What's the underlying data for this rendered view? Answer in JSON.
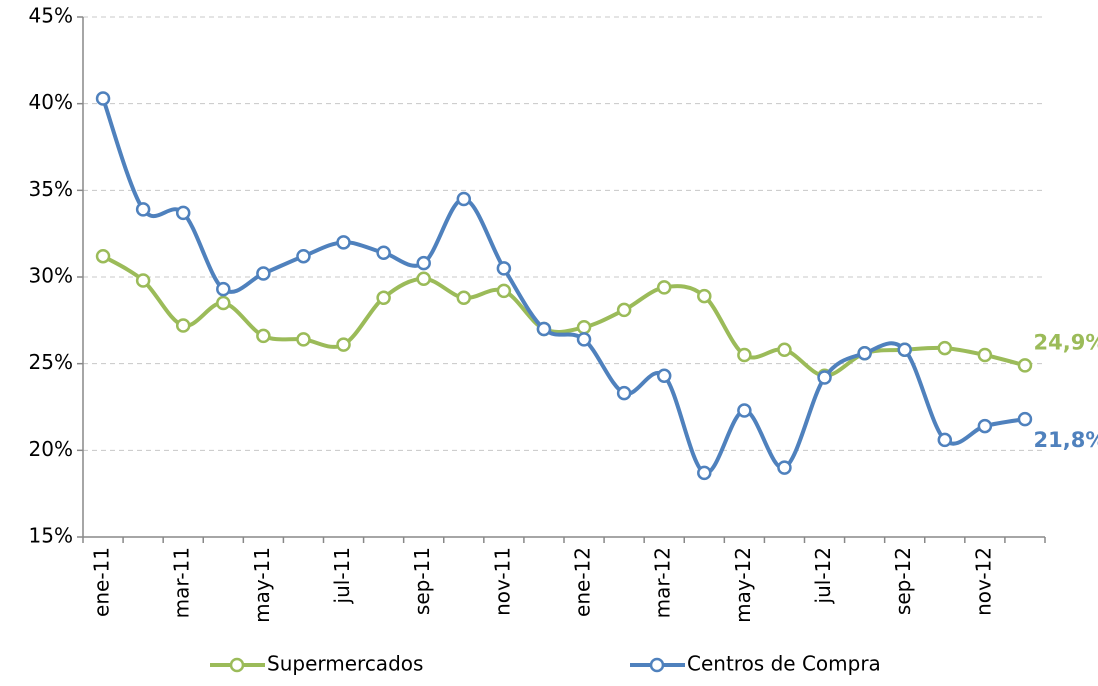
{
  "chart_data": {
    "type": "line",
    "categories": [
      "ene-11",
      null,
      "mar-11",
      null,
      "may-11",
      null,
      "jul-11",
      null,
      "sep-11",
      null,
      "nov-11",
      null,
      "ene-12",
      null,
      "mar-12",
      null,
      "may-12",
      null,
      "jul-12",
      null,
      "sep-12",
      null,
      "nov-12",
      null
    ],
    "series": [
      {
        "name": "Supermercados",
        "color": "#9bbb59",
        "values": [
          31.2,
          29.8,
          27.2,
          28.5,
          26.6,
          26.4,
          26.1,
          28.8,
          29.9,
          28.8,
          29.2,
          27.0,
          27.1,
          28.1,
          29.4,
          28.9,
          25.5,
          25.8,
          24.3,
          25.6,
          25.8,
          25.9,
          25.5,
          24.9
        ],
        "value_labels": [
          null,
          null,
          null,
          null,
          null,
          null,
          null,
          null,
          null,
          null,
          null,
          null,
          null,
          null,
          null,
          null,
          null,
          null,
          null,
          null,
          null,
          null,
          null,
          "24,9%"
        ]
      },
      {
        "name": "Centros de Compra",
        "color": "#4f81bd",
        "values": [
          40.3,
          33.9,
          33.7,
          29.3,
          30.2,
          31.2,
          32.0,
          31.4,
          30.8,
          34.5,
          30.5,
          27.0,
          26.4,
          23.3,
          24.3,
          18.7,
          22.3,
          19.0,
          24.2,
          25.6,
          25.8,
          20.6,
          21.4,
          21.8
        ],
        "value_labels": [
          null,
          null,
          null,
          null,
          null,
          null,
          null,
          null,
          null,
          null,
          null,
          null,
          null,
          null,
          null,
          null,
          null,
          null,
          null,
          null,
          null,
          null,
          null,
          "21,8%"
        ]
      }
    ],
    "ylim": [
      15,
      45
    ],
    "yticks": [
      {
        "value": 15,
        "label": "15%"
      },
      {
        "value": 20,
        "label": "20%"
      },
      {
        "value": 25,
        "label": "25%"
      },
      {
        "value": 30,
        "label": "30%"
      },
      {
        "value": 35,
        "label": "35%"
      },
      {
        "value": 40,
        "label": "40%"
      },
      {
        "value": 45,
        "label": "45%"
      }
    ],
    "grid": true,
    "legend": "bottom"
  }
}
